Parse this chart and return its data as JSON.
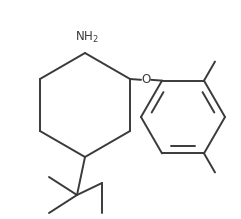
{
  "background_color": "#ffffff",
  "line_color": "#3a3a3a",
  "line_width": 1.4,
  "fig_width": 2.41,
  "fig_height": 2.19,
  "dpi": 100,
  "nh2_label": "NH$_2$",
  "o_label": "O",
  "font_size": 8.5
}
